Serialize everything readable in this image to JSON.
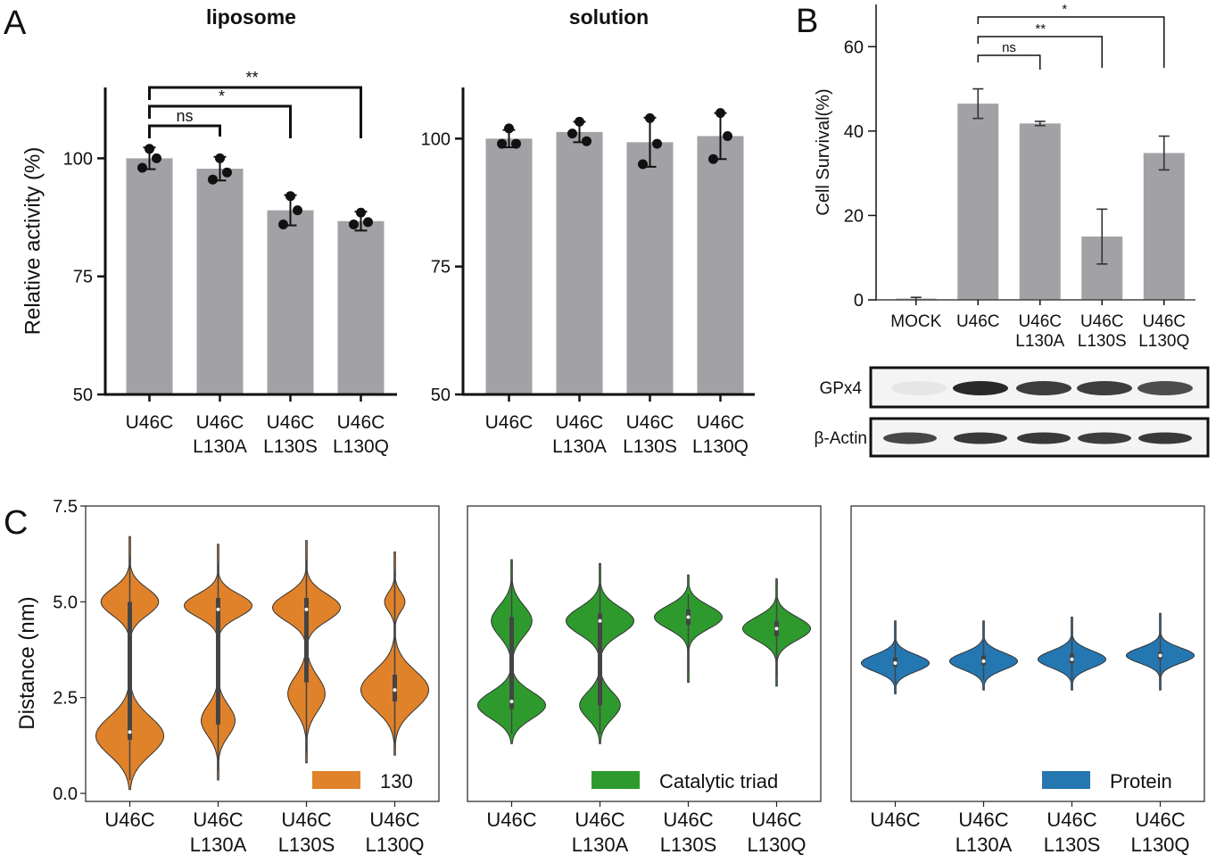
{
  "panels": {
    "A": "A",
    "B": "B",
    "C": "C"
  },
  "chart_data": [
    {
      "id": "A-liposome",
      "type": "bar",
      "title": "liposome",
      "ylabel": "Relative activity (%)",
      "ylim": [
        50,
        115
      ],
      "yticks": [
        50,
        75,
        100
      ],
      "categories": [
        [
          "U46C"
        ],
        [
          "U46C",
          "L130A"
        ],
        [
          "U46C",
          "L130S"
        ],
        [
          "U46C",
          "L130Q"
        ]
      ],
      "values": [
        100,
        97.8,
        89,
        86.7
      ],
      "errors": [
        2.3,
        2.5,
        3.2,
        2.0
      ],
      "points": [
        [
          102,
          100,
          98
        ],
        [
          100,
          97,
          95.5
        ],
        [
          92,
          89,
          86
        ],
        [
          88.5,
          86.5,
          86
        ]
      ],
      "color": "#a2a2a6",
      "significance": [
        {
          "from": 0,
          "to": 1,
          "label": "ns"
        },
        {
          "from": 0,
          "to": 2,
          "label": "*"
        },
        {
          "from": 0,
          "to": 3,
          "label": "**"
        }
      ]
    },
    {
      "id": "A-solution",
      "type": "bar",
      "title": "solution",
      "ylabel": "",
      "ylim": [
        50,
        110
      ],
      "yticks": [
        50,
        75,
        100
      ],
      "categories": [
        [
          "U46C"
        ],
        [
          "U46C",
          "L130A"
        ],
        [
          "U46C",
          "L130S"
        ],
        [
          "U46C",
          "L130Q"
        ]
      ],
      "values": [
        100,
        101.3,
        99.3,
        100.5
      ],
      "errors": [
        1.7,
        2.0,
        4.8,
        4.5
      ],
      "points": [
        [
          102,
          99,
          99
        ],
        [
          103.3,
          99.5,
          101
        ],
        [
          104,
          99,
          95
        ],
        [
          105,
          100.5,
          96
        ]
      ],
      "color": "#a2a2a6"
    },
    {
      "id": "B-cell-survival",
      "type": "bar",
      "title": "",
      "ylabel": "Cell Survival(%)",
      "ylim": [
        0,
        70
      ],
      "yticks": [
        0,
        20,
        40,
        60
      ],
      "categories": [
        [
          "MOCK"
        ],
        [
          "U46C"
        ],
        [
          "U46C",
          "L130A"
        ],
        [
          "U46C",
          "L130S"
        ],
        [
          "U46C",
          "L130Q"
        ]
      ],
      "values": [
        0.3,
        46.5,
        41.8,
        15,
        34.8
      ],
      "errors": [
        0.3,
        3.5,
        0.5,
        6.5,
        4.0
      ],
      "color": "#a2a2a6",
      "significance": [
        {
          "from": 1,
          "to": 2,
          "label": "ns"
        },
        {
          "from": 1,
          "to": 3,
          "label": "**"
        },
        {
          "from": 1,
          "to": 4,
          "label": "*"
        }
      ]
    },
    {
      "id": "C-130",
      "type": "violin",
      "ylabel": "Distance (nm)",
      "ylim": [
        0,
        7.5
      ],
      "yticks": [
        0.0,
        2.5,
        5.0,
        7.5
      ],
      "categories": [
        [
          "U46C"
        ],
        [
          "U46C",
          "L130A"
        ],
        [
          "U46C",
          "L130S"
        ],
        [
          "U46C",
          "L130Q"
        ]
      ],
      "legend": "130",
      "color": "#e0822a",
      "violins": [
        {
          "range": [
            0.1,
            6.7
          ],
          "modes": [
            [
              1.5,
              0.5,
              1.0
            ],
            [
              5.0,
              0.35,
              0.85
            ]
          ],
          "median": 1.6,
          "q": [
            1.4,
            5.0
          ]
        },
        {
          "range": [
            0.35,
            6.5
          ],
          "modes": [
            [
              4.9,
              0.3,
              1.0
            ],
            [
              1.9,
              0.4,
              0.5
            ]
          ],
          "median": 4.8,
          "q": [
            1.8,
            5.1
          ]
        },
        {
          "range": [
            0.8,
            6.6
          ],
          "modes": [
            [
              4.85,
              0.35,
              1.0
            ],
            [
              2.6,
              0.45,
              0.55
            ]
          ],
          "median": 4.8,
          "q": [
            2.9,
            5.1
          ]
        },
        {
          "range": [
            1.0,
            6.3
          ],
          "modes": [
            [
              2.7,
              0.5,
              1.0
            ],
            [
              5.0,
              0.25,
              0.3
            ]
          ],
          "median": 2.7,
          "q": [
            2.4,
            3.1
          ]
        }
      ]
    },
    {
      "id": "C-catalytic-triad",
      "type": "violin",
      "ylabel": "",
      "ylim": [
        0,
        7.5
      ],
      "categories": [
        [
          "U46C"
        ],
        [
          "U46C",
          "L130A"
        ],
        [
          "U46C",
          "L130S"
        ],
        [
          "U46C",
          "L130Q"
        ]
      ],
      "legend": "Catalytic triad",
      "color": "#2e9a2e",
      "violins": [
        {
          "range": [
            1.3,
            6.1
          ],
          "modes": [
            [
              2.3,
              0.35,
              1.0
            ],
            [
              4.5,
              0.4,
              0.6
            ]
          ],
          "median": 2.4,
          "q": [
            2.2,
            4.6
          ]
        },
        {
          "range": [
            1.3,
            6.0
          ],
          "modes": [
            [
              4.5,
              0.35,
              1.0
            ],
            [
              2.3,
              0.35,
              0.6
            ]
          ],
          "median": 4.5,
          "q": [
            2.3,
            4.7
          ]
        },
        {
          "range": [
            2.9,
            5.7
          ],
          "modes": [
            [
              4.6,
              0.3,
              1.0
            ]
          ],
          "median": 4.6,
          "q": [
            4.4,
            4.8
          ]
        },
        {
          "range": [
            2.8,
            5.6
          ],
          "modes": [
            [
              4.3,
              0.3,
              1.0
            ]
          ],
          "median": 4.3,
          "q": [
            4.1,
            4.5
          ]
        }
      ]
    },
    {
      "id": "C-protein",
      "type": "violin",
      "ylabel": "",
      "ylim": [
        0,
        7.5
      ],
      "categories": [
        [
          "U46C"
        ],
        [
          "U46C",
          "L130A"
        ],
        [
          "U46C",
          "L130S"
        ],
        [
          "U46C",
          "L130Q"
        ]
      ],
      "legend": "Protein",
      "color": "#2577b2",
      "violins": [
        {
          "range": [
            2.6,
            4.5
          ],
          "modes": [
            [
              3.4,
              0.22,
              1.0
            ]
          ],
          "median": 3.4,
          "q": [
            3.3,
            3.55
          ]
        },
        {
          "range": [
            2.7,
            4.5
          ],
          "modes": [
            [
              3.45,
              0.22,
              1.0
            ]
          ],
          "median": 3.45,
          "q": [
            3.35,
            3.6
          ]
        },
        {
          "range": [
            2.7,
            4.6
          ],
          "modes": [
            [
              3.5,
              0.22,
              1.0
            ]
          ],
          "median": 3.5,
          "q": [
            3.4,
            3.65
          ]
        },
        {
          "range": [
            2.7,
            4.7
          ],
          "modes": [
            [
              3.6,
              0.2,
              1.0
            ]
          ],
          "median": 3.6,
          "q": [
            3.5,
            3.7
          ]
        }
      ]
    }
  ],
  "blot": {
    "rows": [
      {
        "label": "GPx4",
        "intensities": [
          0.03,
          1.0,
          0.9,
          0.9,
          0.82
        ]
      },
      {
        "label": "β-Actin",
        "intensities": [
          0.85,
          0.92,
          0.92,
          0.9,
          0.92
        ]
      }
    ]
  }
}
